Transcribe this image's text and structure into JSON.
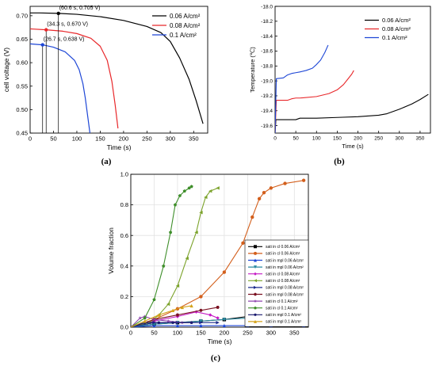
{
  "captions": {
    "a": "(a)",
    "b": "(b)",
    "c": "(c)"
  },
  "chart_data": [
    {
      "type": "line",
      "panel": "a",
      "xlabel": "Time (s)",
      "ylabel": "cell voltage (V)",
      "xlim": [
        0,
        380
      ],
      "ylim": [
        0.45,
        0.72
      ],
      "xticks": [
        0,
        50,
        100,
        150,
        200,
        250,
        300,
        350
      ],
      "yticks": [
        0.45,
        0.5,
        0.55,
        0.6,
        0.65,
        0.7
      ],
      "ytick_labels": [
        "0.45",
        "0.50",
        "0.55",
        "0.60",
        "0.65",
        "0.70"
      ],
      "grid": false,
      "legend_position": "top-right",
      "series": [
        {
          "name": "0.06 A/cm²",
          "color": "#000000",
          "x": [
            0,
            20,
            60.6,
            100,
            150,
            200,
            250,
            280,
            300,
            320,
            340,
            355,
            370
          ],
          "y": [
            0.706,
            0.706,
            0.705,
            0.703,
            0.698,
            0.69,
            0.677,
            0.664,
            0.645,
            0.61,
            0.565,
            0.52,
            0.47
          ]
        },
        {
          "name": "0.08 A/cm²",
          "color": "#e8272a",
          "x": [
            0,
            34.3,
            70,
            100,
            130,
            150,
            165,
            175,
            182,
            188
          ],
          "y": [
            0.672,
            0.67,
            0.667,
            0.662,
            0.652,
            0.635,
            0.605,
            0.56,
            0.51,
            0.46
          ]
        },
        {
          "name": "0.1 A/cm²",
          "color": "#1d46d6",
          "x": [
            0,
            26.7,
            50,
            75,
            95,
            105,
            113,
            118,
            124,
            128
          ],
          "y": [
            0.64,
            0.638,
            0.633,
            0.623,
            0.605,
            0.585,
            0.555,
            0.525,
            0.48,
            0.45
          ]
        }
      ],
      "annotations": [
        {
          "text": "(60.6 s, 0.705 V)",
          "x": 60.6,
          "y": 0.705,
          "color": "#000000"
        },
        {
          "text": "(34.3 s, 0.670 V)",
          "x": 34.3,
          "y": 0.67,
          "color": "#e8272a"
        },
        {
          "text": "(26.7 s, 0.638 V)",
          "x": 26.7,
          "y": 0.638,
          "color": "#1d46d6"
        }
      ]
    },
    {
      "type": "line",
      "panel": "b",
      "xlabel": "Time (s)",
      "ylabel": "Temperature (℃)",
      "xlim": [
        0,
        375
      ],
      "ylim": [
        -19.7,
        -18.0
      ],
      "xticks": [
        0,
        50,
        100,
        150,
        200,
        250,
        300,
        350
      ],
      "yticks": [
        -19.6,
        -19.4,
        -19.2,
        -19.0,
        -18.8,
        -18.6,
        -18.4,
        -18.2,
        -18.0
      ],
      "ytick_labels": [
        "-19.6",
        "-19.4",
        "-19.2",
        "-19.0",
        "-18.8",
        "-18.6",
        "-18.4",
        "-18.2",
        "-18.0"
      ],
      "grid": false,
      "legend_position": "top-right",
      "series": [
        {
          "name": "0.06 A/cm²",
          "color": "#000000",
          "x": [
            0,
            2,
            10,
            50,
            60,
            100,
            150,
            200,
            250,
            270,
            300,
            330,
            350,
            370
          ],
          "y": [
            -19.7,
            -19.52,
            -19.52,
            -19.52,
            -19.5,
            -19.5,
            -19.49,
            -19.48,
            -19.46,
            -19.44,
            -19.38,
            -19.31,
            -19.25,
            -19.18
          ]
        },
        {
          "name": "0.08 A/cm²",
          "color": "#e8272a",
          "x": [
            0,
            3,
            10,
            30,
            40,
            50,
            60,
            100,
            130,
            150,
            165,
            175,
            185,
            190
          ],
          "y": [
            -19.7,
            -19.26,
            -19.26,
            -19.26,
            -19.24,
            -19.23,
            -19.23,
            -19.21,
            -19.17,
            -19.12,
            -19.05,
            -18.98,
            -18.91,
            -18.86
          ]
        },
        {
          "name": "0.1 A/cm²",
          "color": "#1d46d6",
          "x": [
            0,
            3,
            20,
            30,
            40,
            50,
            60,
            75,
            90,
            100,
            110,
            120,
            128
          ],
          "y": [
            -19.7,
            -18.97,
            -18.96,
            -18.92,
            -18.9,
            -18.89,
            -18.88,
            -18.86,
            -18.83,
            -18.78,
            -18.72,
            -18.62,
            -18.52
          ]
        }
      ]
    },
    {
      "type": "line",
      "panel": "c",
      "xlabel": "Time (s)",
      "ylabel": "Volume fraction",
      "xlim": [
        0,
        380
      ],
      "ylim": [
        0,
        1.0
      ],
      "xticks": [
        0,
        50,
        100,
        150,
        200,
        250,
        300,
        350
      ],
      "yticks": [
        0,
        0.2,
        0.4,
        0.6,
        0.8,
        1.0
      ],
      "ytick_labels": [
        "0.0",
        "0.2",
        "0.4",
        "0.6",
        "0.8",
        "1.0"
      ],
      "grid": true,
      "legend_position": "center-right",
      "series": [
        {
          "name": "sati in cl 0.06 A/cm²",
          "color": "#000000",
          "marker": "square",
          "x": [
            0,
            50,
            100,
            150,
            200,
            250,
            280,
            300,
            330,
            370
          ],
          "y": [
            0.0,
            0.02,
            0.03,
            0.04,
            0.05,
            0.07,
            0.1,
            0.08,
            0.05,
            0.03
          ]
        },
        {
          "name": "sati in cl 0.06 A/cm²",
          "color": "#d35f1c",
          "marker": "circle",
          "x": [
            0,
            50,
            100,
            150,
            200,
            240,
            260,
            275,
            285,
            300,
            330,
            370
          ],
          "y": [
            0.0,
            0.05,
            0.12,
            0.2,
            0.36,
            0.55,
            0.72,
            0.84,
            0.88,
            0.91,
            0.94,
            0.96
          ]
        },
        {
          "name": "sati in mpl 0.06 A/cm²",
          "color": "#1d46d6",
          "marker": "triangle-up",
          "x": [
            0,
            50,
            100,
            150,
            200,
            250,
            300,
            370
          ],
          "y": [
            0.0,
            0.01,
            0.01,
            0.01,
            0.01,
            0.01,
            0.01,
            0.01
          ]
        },
        {
          "name": "sati in mpl 0.06 A/cm²",
          "color": "#2a8aa0",
          "marker": "triangle-down",
          "x": [
            0,
            50,
            100,
            150,
            200,
            250,
            300,
            340,
            370
          ],
          "y": [
            0.0,
            0.02,
            0.03,
            0.04,
            0.05,
            0.06,
            0.07,
            0.09,
            0.12
          ]
        },
        {
          "name": "sati in cl 0.08 A/cm²",
          "color": "#c51ac5",
          "marker": "diamond",
          "x": [
            0,
            50,
            100,
            140,
            170,
            186
          ],
          "y": [
            0.0,
            0.04,
            0.07,
            0.1,
            0.08,
            0.06
          ]
        },
        {
          "name": "sati in cl 0.08 A/cm²",
          "color": "#7ba22a",
          "marker": "triangle-left",
          "x": [
            0,
            40,
            60,
            80,
            100,
            120,
            140,
            150,
            160,
            170,
            186
          ],
          "y": [
            0.0,
            0.03,
            0.08,
            0.15,
            0.27,
            0.45,
            0.62,
            0.75,
            0.85,
            0.89,
            0.91
          ]
        },
        {
          "name": "sati in mpl 0.08 A/cm²",
          "color": "#1b2a8c",
          "marker": "triangle-right",
          "x": [
            0,
            50,
            100,
            150,
            186
          ],
          "y": [
            0.0,
            0.03,
            0.03,
            0.03,
            0.03
          ]
        },
        {
          "name": "sati in mpl 0.08 A/cm²",
          "color": "#7a1020",
          "marker": "hexagon",
          "x": [
            0,
            50,
            100,
            150,
            186
          ],
          "y": [
            0.0,
            0.05,
            0.08,
            0.11,
            0.13
          ]
        },
        {
          "name": "sati in cl 0.1 A/cm²",
          "color": "#8e44ad",
          "marker": "star",
          "x": [
            0,
            20,
            30,
            50,
            80,
            110,
            130
          ],
          "y": [
            0.0,
            0.06,
            0.07,
            0.05,
            0.04,
            0.03,
            0.03
          ]
        },
        {
          "name": "sati in cl 0.1 A/cm²",
          "color": "#3e8e2a",
          "marker": "pentagon",
          "x": [
            0,
            30,
            50,
            70,
            85,
            95,
            105,
            115,
            125,
            130
          ],
          "y": [
            0.0,
            0.06,
            0.18,
            0.4,
            0.62,
            0.8,
            0.86,
            0.89,
            0.91,
            0.92
          ]
        },
        {
          "name": "sati in mpl 0.1 A/cm²",
          "color": "#1a1a6e",
          "marker": "circle-small",
          "x": [
            0,
            30,
            60,
            90,
            130
          ],
          "y": [
            0.0,
            0.03,
            0.03,
            0.03,
            0.03
          ]
        },
        {
          "name": "sati in mpl 0.1 A/cm²",
          "color": "#d4a21a",
          "marker": "triangle-up",
          "x": [
            0,
            30,
            60,
            90,
            110,
            130
          ],
          "y": [
            0.0,
            0.04,
            0.08,
            0.11,
            0.13,
            0.14
          ]
        }
      ]
    }
  ]
}
